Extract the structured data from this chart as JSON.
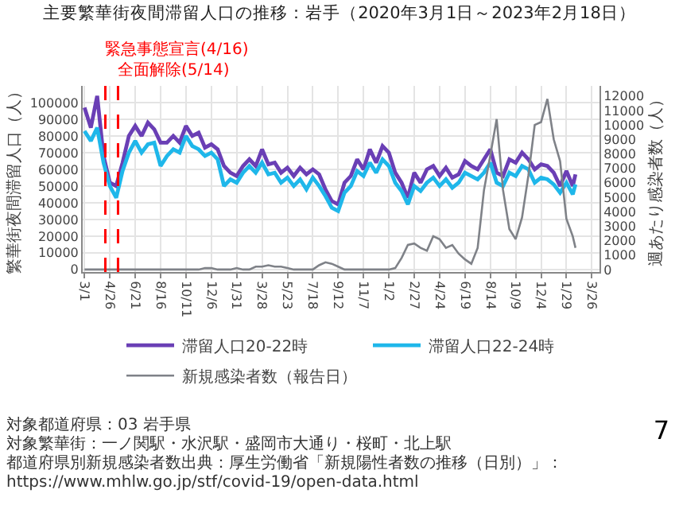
{
  "chart_data": {
    "type": "line",
    "title": "主要繁華街夜間滞留人口の推移：岩手（2020年3月1日～2023年2月18日）",
    "ylabel": "繁華街夜間滞留人口（人）",
    "y2label": "週あたり感染者数（人）",
    "x": [
      "2020-03-01",
      "2020-03-15",
      "2020-03-29",
      "2020-04-12",
      "2020-04-26",
      "2020-05-10",
      "2020-05-24",
      "2020-06-07",
      "2020-06-21",
      "2020-07-05",
      "2020-07-19",
      "2020-08-02",
      "2020-08-16",
      "2020-08-30",
      "2020-09-13",
      "2020-09-27",
      "2020-10-11",
      "2020-10-25",
      "2020-11-08",
      "2020-11-22",
      "2020-12-06",
      "2020-12-20",
      "2021-01-03",
      "2021-01-17",
      "2021-01-31",
      "2021-02-14",
      "2021-02-28",
      "2021-03-14",
      "2021-03-28",
      "2021-04-11",
      "2021-04-25",
      "2021-05-09",
      "2021-05-23",
      "2021-06-06",
      "2021-06-20",
      "2021-07-04",
      "2021-07-18",
      "2021-08-01",
      "2021-08-15",
      "2021-08-29",
      "2021-09-12",
      "2021-09-26",
      "2021-10-10",
      "2021-10-24",
      "2021-11-07",
      "2021-11-21",
      "2021-12-05",
      "2021-12-19",
      "2022-01-02",
      "2022-01-16",
      "2022-01-30",
      "2022-02-13",
      "2022-02-27",
      "2022-03-13",
      "2022-03-27",
      "2022-04-10",
      "2022-04-24",
      "2022-05-08",
      "2022-05-22",
      "2022-06-05",
      "2022-06-19",
      "2022-07-03",
      "2022-07-17",
      "2022-07-31",
      "2022-08-14",
      "2022-08-28",
      "2022-09-11",
      "2022-09-25",
      "2022-10-09",
      "2022-10-23",
      "2022-11-06",
      "2022-11-20",
      "2022-12-04",
      "2022-12-18",
      "2023-01-01",
      "2023-01-15",
      "2023-01-29",
      "2023-02-12",
      "2023-02-18"
    ],
    "series": [
      {
        "name": "滞留人口20-22時",
        "color": "#6a3fb5",
        "values": [
          97000,
          85000,
          104000,
          68000,
          52000,
          50000,
          64000,
          80000,
          86000,
          80000,
          88000,
          84000,
          76000,
          76000,
          80000,
          76000,
          86000,
          80000,
          82000,
          73000,
          75000,
          72000,
          62000,
          58000,
          56000,
          62000,
          66000,
          62000,
          72000,
          63000,
          64000,
          58000,
          61000,
          56000,
          61000,
          57000,
          60000,
          57000,
          48000,
          41000,
          39000,
          52000,
          56000,
          66000,
          60000,
          72000,
          64000,
          74000,
          70000,
          58000,
          52000,
          43000,
          58000,
          52000,
          60000,
          62000,
          56000,
          61000,
          55000,
          57000,
          65000,
          62000,
          60000,
          66000,
          72000,
          58000,
          56000,
          66000,
          64000,
          70000,
          66000,
          60000,
          63000,
          62000,
          58000,
          50000,
          59000,
          50000,
          57000
        ]
      },
      {
        "name": "滞留人口22-24時",
        "color": "#1fb7ea",
        "values": [
          83000,
          77000,
          85000,
          64000,
          50000,
          43000,
          59000,
          70000,
          77000,
          70000,
          75000,
          76000,
          62000,
          68000,
          72000,
          70000,
          80000,
          74000,
          72000,
          68000,
          70000,
          66000,
          50000,
          54000,
          52000,
          58000,
          62000,
          58000,
          64000,
          57000,
          58000,
          52000,
          55000,
          50000,
          54000,
          48000,
          55000,
          50000,
          44000,
          37000,
          35000,
          46000,
          50000,
          59000,
          56000,
          64000,
          58000,
          66000,
          62000,
          52000,
          47000,
          39000,
          50000,
          47000,
          52000,
          55000,
          50000,
          54000,
          49000,
          52000,
          58000,
          56000,
          54000,
          58000,
          64000,
          52000,
          50000,
          58000,
          56000,
          62000,
          60000,
          52000,
          55000,
          54000,
          51000,
          46000,
          52000,
          45000,
          51000
        ]
      },
      {
        "name": "新規感染者数（報告日）",
        "color": "#7f8288",
        "axis": "y2",
        "values": [
          0,
          0,
          0,
          0,
          0,
          0,
          0,
          0,
          0,
          0,
          0,
          0,
          0,
          0,
          0,
          0,
          0,
          0,
          0,
          100,
          100,
          0,
          0,
          0,
          100,
          0,
          0,
          200,
          200,
          300,
          200,
          200,
          100,
          0,
          0,
          0,
          0,
          300,
          500,
          400,
          200,
          0,
          0,
          0,
          0,
          0,
          0,
          0,
          0,
          100,
          800,
          1700,
          1800,
          1500,
          1300,
          2300,
          2100,
          1500,
          1700,
          1100,
          700,
          400,
          1500,
          5500,
          7900,
          10400,
          5500,
          2800,
          2100,
          3600,
          6500,
          10000,
          10200,
          11800,
          9000,
          7500,
          3500,
          2300,
          1500
        ]
      }
    ],
    "xlim": [
      "2020-02-26",
      "2023-04-12"
    ],
    "xticks": [
      {
        "value": "2020-03-01",
        "label": "3/1"
      },
      {
        "value": "2020-04-26",
        "label": "4/26"
      },
      {
        "value": "2020-06-21",
        "label": "6/21"
      },
      {
        "value": "2020-08-16",
        "label": "8/16"
      },
      {
        "value": "2020-10-11",
        "label": "10/11"
      },
      {
        "value": "2020-12-06",
        "label": "12/6"
      },
      {
        "value": "2021-01-31",
        "label": "1/31"
      },
      {
        "value": "2021-03-28",
        "label": "3/28"
      },
      {
        "value": "2021-05-23",
        "label": "5/23"
      },
      {
        "value": "2021-07-18",
        "label": "7/18"
      },
      {
        "value": "2021-09-12",
        "label": "9/12"
      },
      {
        "value": "2021-11-07",
        "label": "11/7"
      },
      {
        "value": "2022-01-02",
        "label": "1/2"
      },
      {
        "value": "2022-02-27",
        "label": "2/27"
      },
      {
        "value": "2022-04-24",
        "label": "4/24"
      },
      {
        "value": "2022-06-19",
        "label": "6/19"
      },
      {
        "value": "2022-08-14",
        "label": "8/14"
      },
      {
        "value": "2022-10-09",
        "label": "10/9"
      },
      {
        "value": "2022-12-04",
        "label": "12/4"
      },
      {
        "value": "2023-01-29",
        "label": "1/29"
      },
      {
        "value": "2023-03-26",
        "label": "3/26"
      }
    ],
    "ylim": [
      -1500,
      110000
    ],
    "yticks": [
      0,
      10000,
      20000,
      30000,
      40000,
      50000,
      60000,
      70000,
      80000,
      90000,
      100000
    ],
    "y2lim": [
      -170,
      12700
    ],
    "y2ticks": [
      0,
      1000,
      2000,
      3000,
      4000,
      5000,
      6000,
      7000,
      8000,
      9000,
      10000,
      11000,
      12000
    ],
    "ref_lines": [
      {
        "axis": "x",
        "value": "2020-04-16",
        "label": "緊急事態宣言(4/16)",
        "color": "#ff0000",
        "line_style": "dashed"
      },
      {
        "axis": "x",
        "value": "2020-05-14",
        "label": "全面解除(5/14)",
        "color": "#ff0000",
        "line_style": "dashed"
      }
    ],
    "annotations": [
      "対象都道府県：03 岩手県",
      "対象繁華街：一ノ関駅・水沢駅・盛岡市大通り・桜町・北上駅",
      "都道府県別新規感染者数出典：厚生労働省「新規陽性者数の推移（日別）」：https://www.mhlw.go.jp/stf/covid-19/open-data.html",
      "7"
    ],
    "grid": true,
    "legend": "bottom"
  }
}
